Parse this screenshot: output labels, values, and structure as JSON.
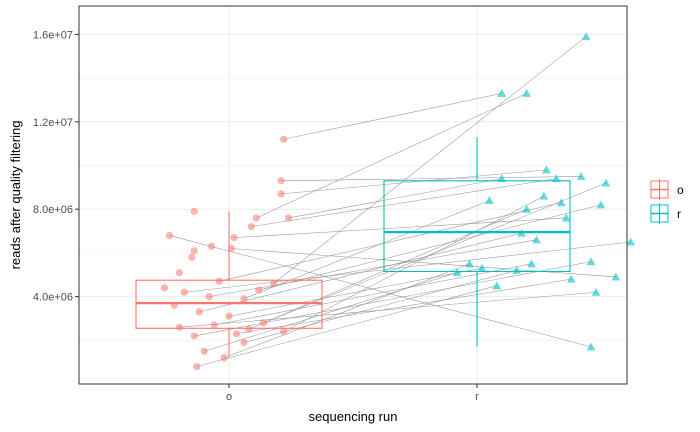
{
  "chart_data": {
    "type": "box-jitter-paired",
    "xlabel": "sequencing run",
    "ylabel": "reads after quality filtering",
    "categories": [
      "o",
      "r"
    ],
    "ylim": [
      0,
      17300000
    ],
    "yticks": [
      4000000,
      8000000,
      12000000,
      16000000
    ],
    "ytick_labels": [
      "4.0e+06",
      "8.0e+06",
      "1.2e+07",
      "1.6e+07"
    ],
    "grid": true,
    "legend": {
      "position": "right",
      "entries": [
        {
          "label": "o",
          "color": "#F8766D"
        },
        {
          "label": "r",
          "color": "#00BFC4"
        }
      ]
    },
    "boxes": [
      {
        "category": "o",
        "color": "#F8766D",
        "whisker_low": 1250000,
        "q1": 2550000,
        "median": 3700000,
        "q3": 4750000,
        "whisker_high": 7900000
      },
      {
        "category": "r",
        "color": "#00BFC4",
        "whisker_low": 1700000,
        "q1": 5150000,
        "median": 6950000,
        "q3": 9300000,
        "whisker_high": 11300000
      }
    ],
    "points_o": [
      {
        "x": -0.24,
        "y": 6800000
      },
      {
        "x": -0.2,
        "y": 5100000
      },
      {
        "x": -0.15,
        "y": 5800000
      },
      {
        "x": -0.14,
        "y": 6100000
      },
      {
        "x": -0.14,
        "y": 7900000
      },
      {
        "x": -0.07,
        "y": 6300000
      },
      {
        "x": 0.01,
        "y": 6200000
      },
      {
        "x": 0.02,
        "y": 6700000
      },
      {
        "x": 0.09,
        "y": 7200000
      },
      {
        "x": 0.11,
        "y": 7600000
      },
      {
        "x": 0.21,
        "y": 9300000
      },
      {
        "x": 0.21,
        "y": 8700000
      },
      {
        "x": 0.22,
        "y": 11200000
      },
      {
        "x": 0.24,
        "y": 7600000
      },
      {
        "x": -0.26,
        "y": 4400000
      },
      {
        "x": -0.22,
        "y": 3600000
      },
      {
        "x": -0.18,
        "y": 4200000
      },
      {
        "x": -0.12,
        "y": 3300000
      },
      {
        "x": -0.08,
        "y": 4000000
      },
      {
        "x": -0.04,
        "y": 4700000
      },
      {
        "x": 0.06,
        "y": 3900000
      },
      {
        "x": 0.12,
        "y": 4300000
      },
      {
        "x": 0.18,
        "y": 4600000
      },
      {
        "x": -0.2,
        "y": 2600000
      },
      {
        "x": -0.14,
        "y": 2200000
      },
      {
        "x": -0.06,
        "y": 2700000
      },
      {
        "x": 0.03,
        "y": 2300000
      },
      {
        "x": 0.08,
        "y": 2500000
      },
      {
        "x": 0.14,
        "y": 2800000
      },
      {
        "x": 0.22,
        "y": 2400000
      },
      {
        "x": -0.1,
        "y": 1500000
      },
      {
        "x": -0.02,
        "y": 1200000
      },
      {
        "x": 0.06,
        "y": 1900000
      },
      {
        "x": -0.13,
        "y": 800000
      },
      {
        "x": 0.0,
        "y": 3100000
      }
    ],
    "points_r": [
      {
        "x": -0.08,
        "y": 5100000
      },
      {
        "x": -0.03,
        "y": 5500000
      },
      {
        "x": 0.02,
        "y": 5300000
      },
      {
        "x": 0.05,
        "y": 8400000
      },
      {
        "x": 0.08,
        "y": 4500000
      },
      {
        "x": 0.16,
        "y": 5200000
      },
      {
        "x": 0.18,
        "y": 6900000
      },
      {
        "x": 0.22,
        "y": 5500000
      },
      {
        "x": 0.2,
        "y": 8000000
      },
      {
        "x": 0.1,
        "y": 9400000
      },
      {
        "x": 0.1,
        "y": 13300000
      },
      {
        "x": 0.2,
        "y": 13300000
      },
      {
        "x": 0.24,
        "y": 6600000
      },
      {
        "x": 0.27,
        "y": 8600000
      },
      {
        "x": 0.32,
        "y": 9400000
      },
      {
        "x": 0.34,
        "y": 8300000
      },
      {
        "x": 0.38,
        "y": 4800000
      },
      {
        "x": 0.42,
        "y": 9500000
      },
      {
        "x": 0.46,
        "y": 5600000
      },
      {
        "x": 0.48,
        "y": 4200000
      },
      {
        "x": 0.5,
        "y": 8200000
      },
      {
        "x": 0.52,
        "y": 9200000
      },
      {
        "x": 0.56,
        "y": 4900000
      },
      {
        "x": 0.62,
        "y": 6500000
      },
      {
        "x": 0.44,
        "y": 15900000
      },
      {
        "x": 0.46,
        "y": 1700000
      },
      {
        "x": 0.28,
        "y": 9800000
      },
      {
        "x": 0.36,
        "y": 7600000
      }
    ],
    "pairs": [
      {
        "o": 22,
        "r": 24
      },
      {
        "o": 12,
        "r": 10
      },
      {
        "o": 9,
        "r": 11
      },
      {
        "o": 11,
        "r": 26
      },
      {
        "o": 13,
        "r": 9
      },
      {
        "o": 10,
        "r": 17
      },
      {
        "o": 8,
        "r": 14
      },
      {
        "o": 21,
        "r": 20
      },
      {
        "o": 20,
        "r": 3
      },
      {
        "o": 19,
        "r": 15
      },
      {
        "o": 18,
        "r": 12
      },
      {
        "o": 7,
        "r": 27
      },
      {
        "o": 6,
        "r": 22
      },
      {
        "o": 16,
        "r": 23
      },
      {
        "o": 17,
        "r": 6
      },
      {
        "o": 29,
        "r": 13
      },
      {
        "o": 28,
        "r": 21
      },
      {
        "o": 27,
        "r": 8
      },
      {
        "o": 26,
        "r": 16
      },
      {
        "o": 25,
        "r": 7
      },
      {
        "o": 24,
        "r": 18
      },
      {
        "o": 23,
        "r": 19
      },
      {
        "o": 32,
        "r": 5
      },
      {
        "o": 31,
        "r": 1
      },
      {
        "o": 34,
        "r": 2
      },
      {
        "o": 30,
        "r": 0
      },
      {
        "o": 33,
        "r": 4
      },
      {
        "o": 0,
        "r": 25
      }
    ]
  }
}
